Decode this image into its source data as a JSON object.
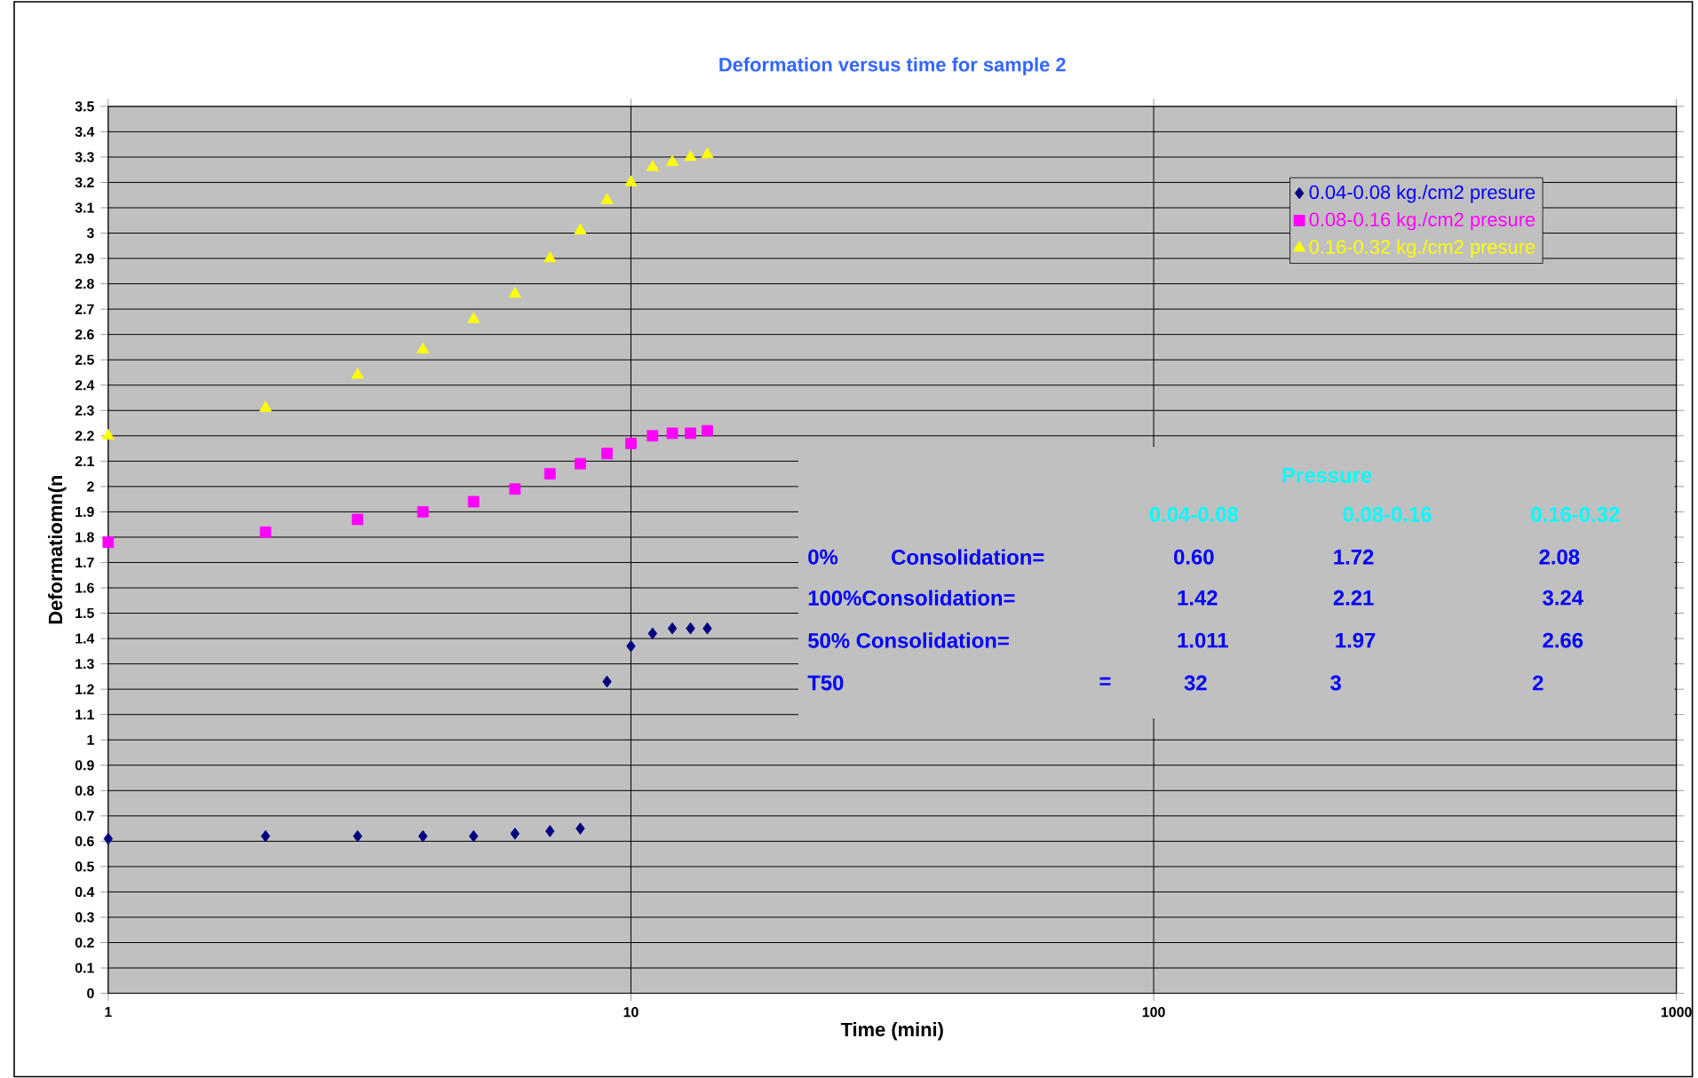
{
  "chart_data": {
    "type": "scatter",
    "title": "Deformation versus time for sample 2",
    "xlabel": "Time (mini)",
    "ylabel": "Deformatiomn(n",
    "x": [
      1,
      2,
      3,
      4,
      5,
      6,
      7,
      8,
      9,
      10,
      11,
      12,
      13,
      14
    ],
    "series": [
      {
        "name": "0.04-0.08 kg./cm2 presure",
        "color": "#000080",
        "marker": "diamond",
        "values": [
          0.61,
          0.62,
          0.62,
          0.62,
          0.62,
          0.63,
          0.64,
          0.65,
          1.23,
          1.37,
          1.42,
          1.44,
          1.44,
          1.44
        ]
      },
      {
        "name": "0.08-0.16 kg./cm2 presure",
        "color": "#ff00ff",
        "marker": "square",
        "values": [
          1.78,
          1.82,
          1.87,
          1.9,
          1.94,
          1.99,
          2.05,
          2.09,
          2.13,
          2.17,
          2.2,
          2.21,
          2.21,
          2.22
        ]
      },
      {
        "name": "0.16-0.32 kg./cm2 presure",
        "color": "#ffff00",
        "marker": "triangle",
        "values": [
          2.2,
          2.31,
          2.44,
          2.54,
          2.66,
          2.76,
          2.9,
          3.01,
          3.13,
          3.2,
          3.26,
          3.28,
          3.3,
          3.31
        ]
      }
    ],
    "log": "x",
    "xlim": [
      1,
      1000
    ],
    "xticks": [
      1,
      10,
      100,
      1000
    ],
    "ylim": [
      0,
      3.5
    ],
    "yticks": [
      0,
      0.1,
      0.2,
      0.3,
      0.4,
      0.5,
      0.6,
      0.7,
      0.8,
      0.9,
      1,
      1.1,
      1.2,
      1.3,
      1.4,
      1.5,
      1.6,
      1.7,
      1.8,
      1.9,
      2,
      2.1,
      2.2,
      2.3,
      2.4,
      2.5,
      2.6,
      2.7,
      2.8,
      2.9,
      3,
      3.1,
      3.2,
      3.3,
      3.4,
      3.5
    ],
    "grid": true,
    "legend": "top right",
    "annotations": [
      "Pressure",
      "0.04-0.08",
      "0.08-0.16",
      "0.16-0.32",
      "0%",
      "Consolidation=",
      "0.60",
      "1.72",
      "2.08",
      "100%Consolidation=",
      "1.42",
      "2.21",
      "3.24",
      "50% Consolidation=",
      "1.011",
      "1.97",
      "2.66",
      "T50",
      "=",
      "32",
      "3",
      "2"
    ]
  }
}
